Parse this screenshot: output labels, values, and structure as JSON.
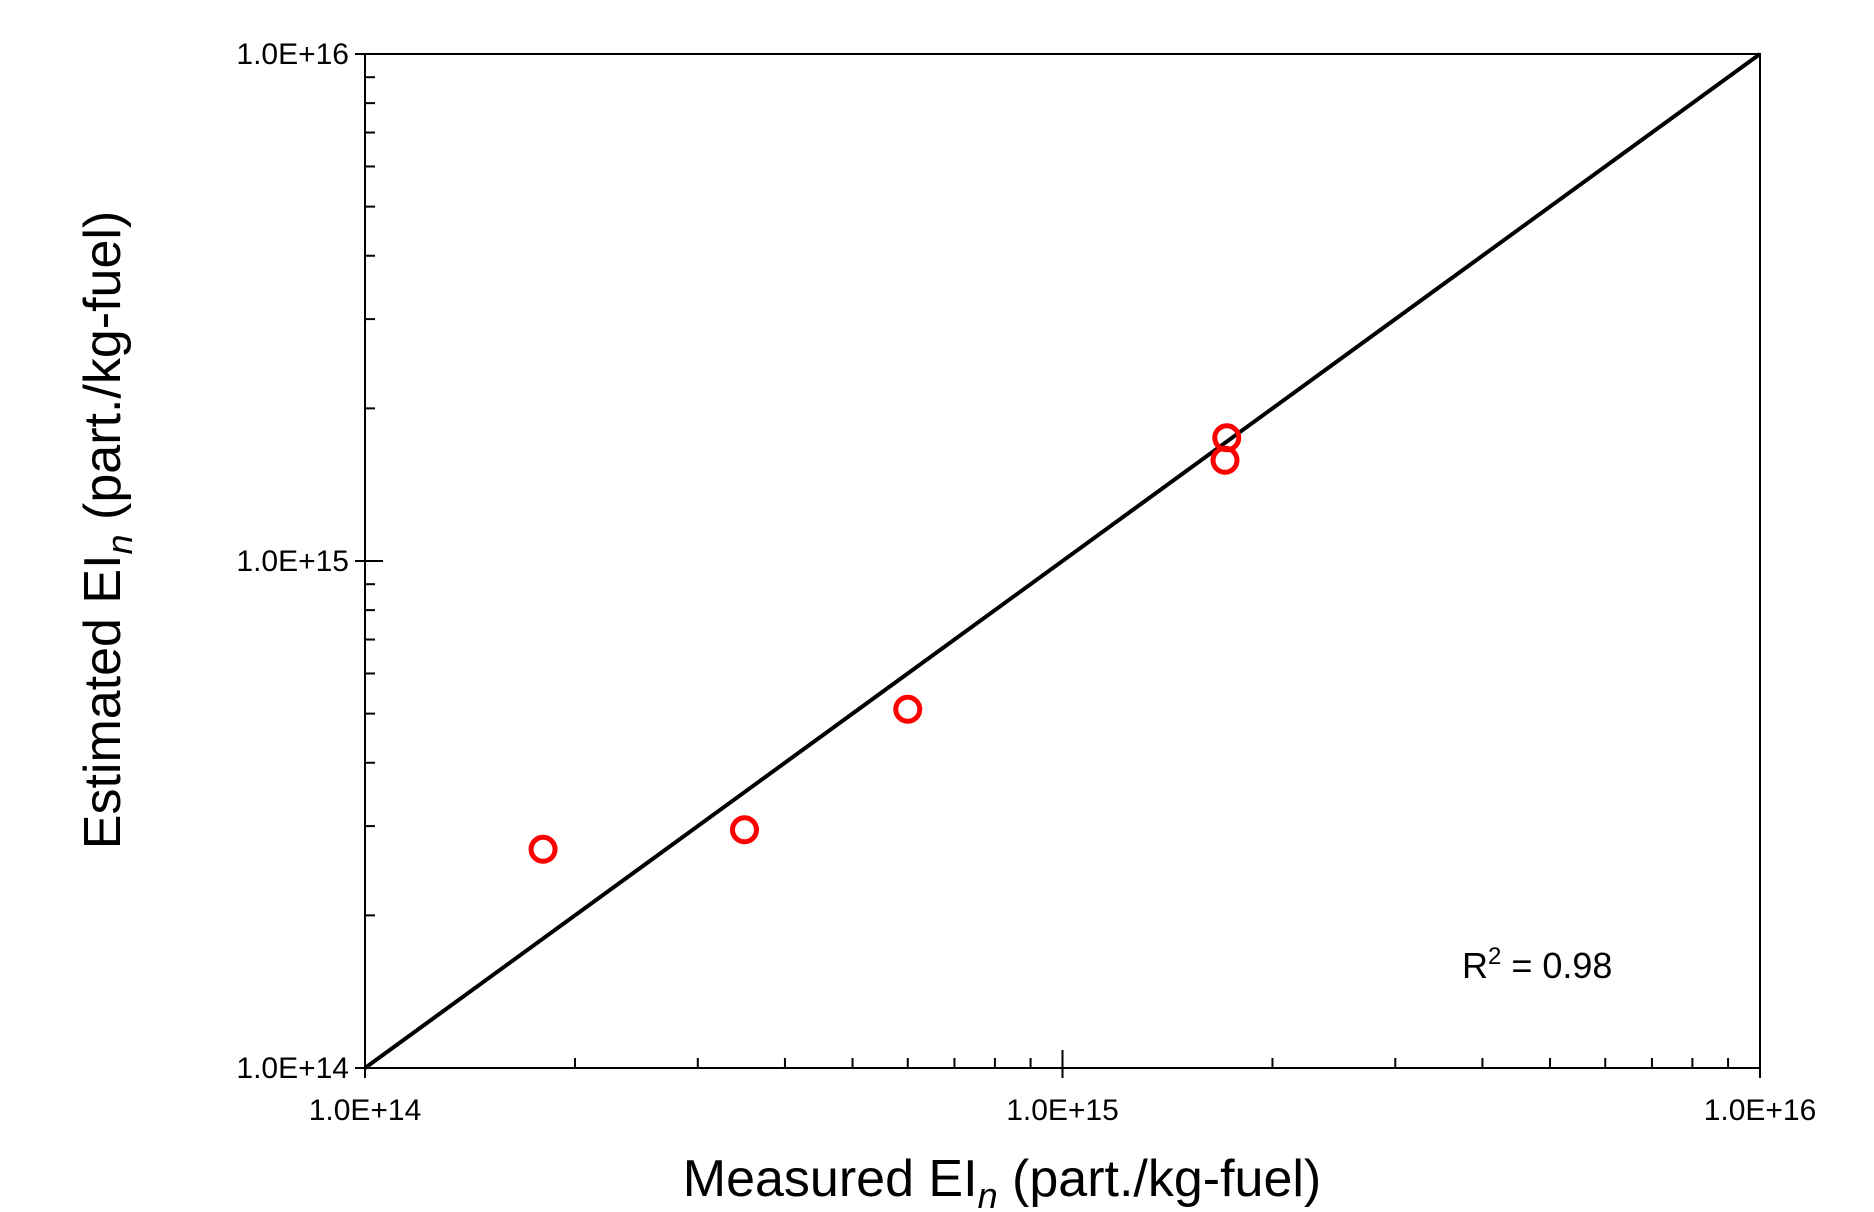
{
  "chart_data": {
    "type": "scatter",
    "title": "",
    "xlabel": {
      "prefix": "Measured EI",
      "subscript": "n",
      "suffix": " (part./kg-fuel)"
    },
    "ylabel": {
      "prefix": "Estimated EI",
      "subscript": "n",
      "suffix": " (part./kg-fuel)"
    },
    "xscale": "log",
    "yscale": "log",
    "xlim": [
      100000000000000.0,
      1e+16
    ],
    "ylim": [
      100000000000000.0,
      1e+16
    ],
    "x_tick_labels": [
      "1.0E+14",
      "1.0E+15",
      "1.0E+16"
    ],
    "y_tick_labels": [
      "1.0E+14",
      "1.0E+15",
      "1.0E+16"
    ],
    "grid": false,
    "series": [
      {
        "marker": "open-circle",
        "color": "#ff0000",
        "points": [
          {
            "x": 180000000000000.0,
            "y": 270000000000000.0
          },
          {
            "x": 350000000000000.0,
            "y": 295000000000000.0
          },
          {
            "x": 600000000000000.0,
            "y": 510000000000000.0
          },
          {
            "x": 1720000000000000.0,
            "y": 1750000000000000.0
          },
          {
            "x": 1710000000000000.0,
            "y": 1580000000000000.0
          }
        ]
      }
    ],
    "reference_line": {
      "type": "1:1",
      "from": [
        100000000000000.0,
        100000000000000.0
      ],
      "to": [
        1e+16,
        1e+16
      ],
      "color": "#000000"
    },
    "annotation": {
      "base": "R",
      "superscript": "2",
      "text": " = 0.98"
    }
  }
}
